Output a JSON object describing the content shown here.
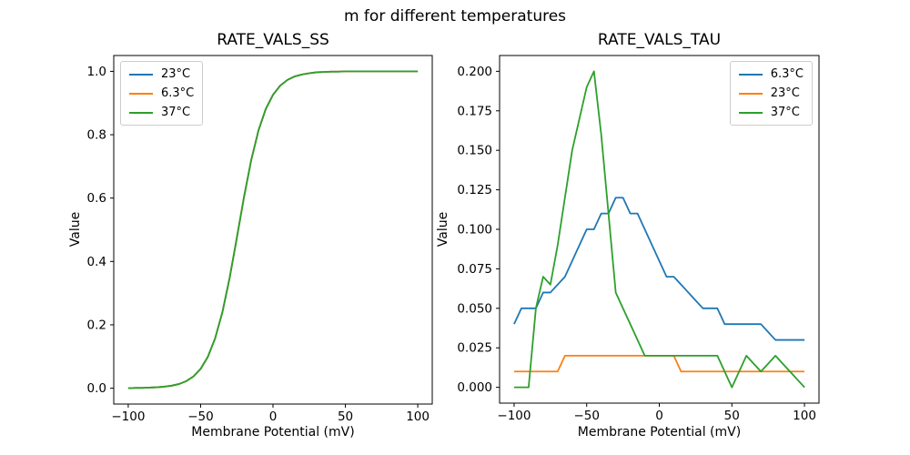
{
  "figure": {
    "suptitle": "m for different temperatures",
    "background": "#ffffff"
  },
  "palette": {
    "blue": "#1f77b4",
    "orange": "#ff7f0e",
    "green": "#2ca02c",
    "axis": "#000000",
    "legend_border": "#cccccc"
  },
  "chart_data": [
    {
      "type": "line",
      "title": "RATE_VALS_SS",
      "xlabel": "Membrane Potential (mV)",
      "ylabel": "Value",
      "xlim": [
        -110,
        110
      ],
      "ylim": [
        -0.05,
        1.05
      ],
      "grid": false,
      "legend_loc": "upper left",
      "xticks": [
        -100,
        -50,
        0,
        50,
        100
      ],
      "xtick_labels": [
        "−100",
        "−50",
        "0",
        "50",
        "100"
      ],
      "yticks": [
        0.0,
        0.2,
        0.4,
        0.6,
        0.8,
        1.0
      ],
      "ytick_labels": [
        "0.0",
        "0.2",
        "0.4",
        "0.6",
        "0.8",
        "1.0"
      ],
      "x": [
        -100,
        -95,
        -90,
        -85,
        -80,
        -75,
        -70,
        -65,
        -60,
        -55,
        -50,
        -45,
        -40,
        -35,
        -30,
        -25,
        -20,
        -15,
        -10,
        -5,
        0,
        5,
        10,
        15,
        20,
        25,
        30,
        35,
        40,
        45,
        50,
        55,
        60,
        65,
        70,
        75,
        80,
        85,
        90,
        95,
        100
      ],
      "series": [
        {
          "name": "23°C",
          "color": "blue",
          "values": [
            0.0,
            0.001,
            0.001,
            0.002,
            0.003,
            0.005,
            0.008,
            0.013,
            0.022,
            0.037,
            0.061,
            0.099,
            0.157,
            0.239,
            0.347,
            0.474,
            0.604,
            0.721,
            0.814,
            0.881,
            0.926,
            0.955,
            0.973,
            0.984,
            0.99,
            0.994,
            0.997,
            0.998,
            0.999,
            0.999,
            1.0,
            1.0,
            1.0,
            1.0,
            1.0,
            1.0,
            1.0,
            1.0,
            1.0,
            1.0,
            1.0
          ]
        },
        {
          "name": "6.3°C",
          "color": "orange",
          "values": [
            0.0,
            0.001,
            0.001,
            0.002,
            0.003,
            0.005,
            0.008,
            0.013,
            0.022,
            0.037,
            0.061,
            0.099,
            0.157,
            0.239,
            0.347,
            0.474,
            0.604,
            0.721,
            0.814,
            0.881,
            0.926,
            0.955,
            0.973,
            0.984,
            0.99,
            0.994,
            0.997,
            0.998,
            0.999,
            0.999,
            1.0,
            1.0,
            1.0,
            1.0,
            1.0,
            1.0,
            1.0,
            1.0,
            1.0,
            1.0,
            1.0
          ]
        },
        {
          "name": "37°C",
          "color": "green",
          "values": [
            0.0,
            0.001,
            0.001,
            0.002,
            0.003,
            0.005,
            0.008,
            0.013,
            0.022,
            0.037,
            0.061,
            0.099,
            0.157,
            0.239,
            0.347,
            0.474,
            0.604,
            0.721,
            0.814,
            0.881,
            0.926,
            0.955,
            0.973,
            0.984,
            0.99,
            0.994,
            0.997,
            0.998,
            0.999,
            0.999,
            1.0,
            1.0,
            1.0,
            1.0,
            1.0,
            1.0,
            1.0,
            1.0,
            1.0,
            1.0,
            1.0
          ]
        }
      ]
    },
    {
      "type": "line",
      "title": "RATE_VALS_TAU",
      "xlabel": "Membrane Potential (mV)",
      "ylabel": "Value",
      "xlim": [
        -110,
        110
      ],
      "ylim": [
        -0.01,
        0.21
      ],
      "grid": false,
      "legend_loc": "upper right",
      "xticks": [
        -100,
        -50,
        0,
        50,
        100
      ],
      "xtick_labels": [
        "−100",
        "−50",
        "0",
        "50",
        "100"
      ],
      "yticks": [
        0.0,
        0.025,
        0.05,
        0.075,
        0.1,
        0.125,
        0.15,
        0.175,
        0.2
      ],
      "ytick_labels": [
        "0.000",
        "0.025",
        "0.050",
        "0.075",
        "0.100",
        "0.125",
        "0.150",
        "0.175",
        "0.200"
      ],
      "x": [
        -100,
        -95,
        -90,
        -85,
        -80,
        -75,
        -70,
        -65,
        -60,
        -55,
        -50,
        -45,
        -40,
        -35,
        -30,
        -25,
        -20,
        -15,
        -10,
        -5,
        0,
        5,
        10,
        15,
        20,
        25,
        30,
        35,
        40,
        45,
        50,
        55,
        60,
        65,
        70,
        75,
        80,
        85,
        90,
        95,
        100
      ],
      "series": [
        {
          "name": "6.3°C",
          "color": "blue",
          "values": [
            0.04,
            0.05,
            0.05,
            0.05,
            0.06,
            0.06,
            0.065,
            0.07,
            0.08,
            0.09,
            0.1,
            0.1,
            0.11,
            0.11,
            0.12,
            0.12,
            0.11,
            0.11,
            0.1,
            0.09,
            0.08,
            0.07,
            0.07,
            0.065,
            0.06,
            0.055,
            0.05,
            0.05,
            0.05,
            0.04,
            0.04,
            0.04,
            0.04,
            0.04,
            0.04,
            0.035,
            0.03,
            0.03,
            0.03,
            0.03,
            0.03
          ]
        },
        {
          "name": "23°C",
          "color": "orange",
          "values": [
            0.01,
            0.01,
            0.01,
            0.01,
            0.01,
            0.01,
            0.01,
            0.02,
            0.02,
            0.02,
            0.02,
            0.02,
            0.02,
            0.02,
            0.02,
            0.02,
            0.02,
            0.02,
            0.02,
            0.02,
            0.02,
            0.02,
            0.02,
            0.01,
            0.01,
            0.01,
            0.01,
            0.01,
            0.01,
            0.01,
            0.01,
            0.01,
            0.01,
            0.01,
            0.01,
            0.01,
            0.01,
            0.01,
            0.01,
            0.01,
            0.01
          ]
        },
        {
          "name": "37°C",
          "color": "green",
          "values": [
            0.0,
            0.0,
            0.0,
            0.05,
            0.07,
            0.065,
            0.09,
            0.12,
            0.15,
            0.17,
            0.19,
            0.2,
            0.16,
            0.11,
            0.06,
            0.05,
            0.04,
            0.03,
            0.02,
            0.02,
            0.02,
            0.02,
            0.02,
            0.02,
            0.02,
            0.02,
            0.02,
            0.02,
            0.02,
            0.01,
            0.0,
            0.01,
            0.02,
            0.015,
            0.01,
            0.015,
            0.02,
            0.015,
            0.01,
            0.005,
            0.0
          ]
        }
      ]
    }
  ]
}
